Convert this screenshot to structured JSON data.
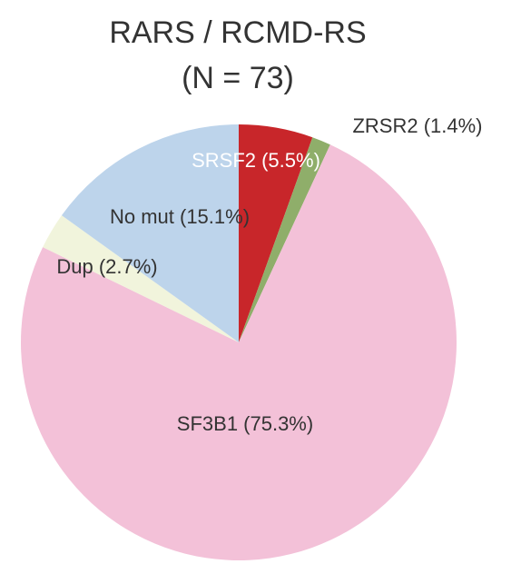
{
  "chart_data": {
    "type": "pie",
    "title": "RARS / RCMD-RS",
    "subtitle": "(N = 73)",
    "values": [
      5.5,
      1.4,
      75.3,
      2.7,
      15.1
    ],
    "value_labels": [
      "SRSF2 (5.5%)",
      "ZRSR2 (1.4%)",
      "SF3B1 (75.3%)",
      "Dup (2.7%)",
      "No mut (15.1%)"
    ],
    "colors": [
      "#c8262a",
      "#8fae6a",
      "#f3c1d8",
      "#f1f4dc",
      "#bdd4eb"
    ]
  }
}
